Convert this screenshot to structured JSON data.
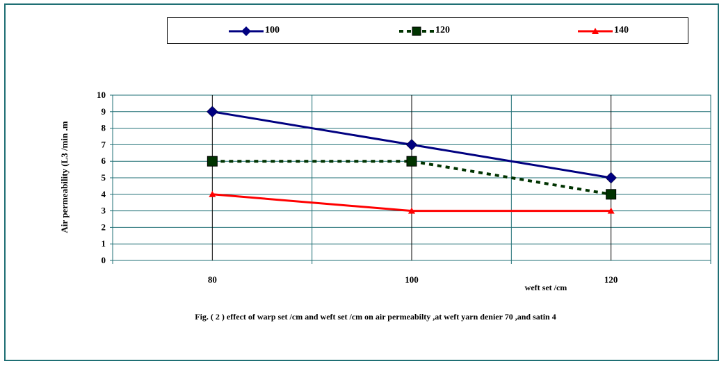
{
  "chart_data": {
    "type": "line",
    "categories": [
      "80",
      "100",
      "120"
    ],
    "series": [
      {
        "name": "100",
        "values": [
          9,
          7,
          5
        ],
        "color": "#000080",
        "line_style": "solid",
        "marker": "diamond"
      },
      {
        "name": "120",
        "values": [
          6,
          6,
          4
        ],
        "color": "#003300",
        "line_style": "dashed",
        "marker": "square"
      },
      {
        "name": "140",
        "values": [
          4,
          3,
          3
        ],
        "color": "#ff0000",
        "line_style": "solid",
        "marker": "triangle"
      }
    ],
    "ylabel": "Air permeability  (L3 /min .m",
    "xlabel": "weft set /cm",
    "ylim": [
      0,
      10
    ],
    "yticks": [
      "0",
      "1",
      "2",
      "3",
      "4",
      "5",
      "6",
      "7",
      "8",
      "9",
      "10"
    ],
    "grid": true,
    "legend_position": "top",
    "caption": "Fig. ( 2 ) effect of warp set /cm and weft set /cm on air permeabilty ,at weft yarn denier 70 ,and satin 4",
    "colors": {
      "frame": "#1f6f74",
      "grid": "#1f6f74"
    }
  }
}
